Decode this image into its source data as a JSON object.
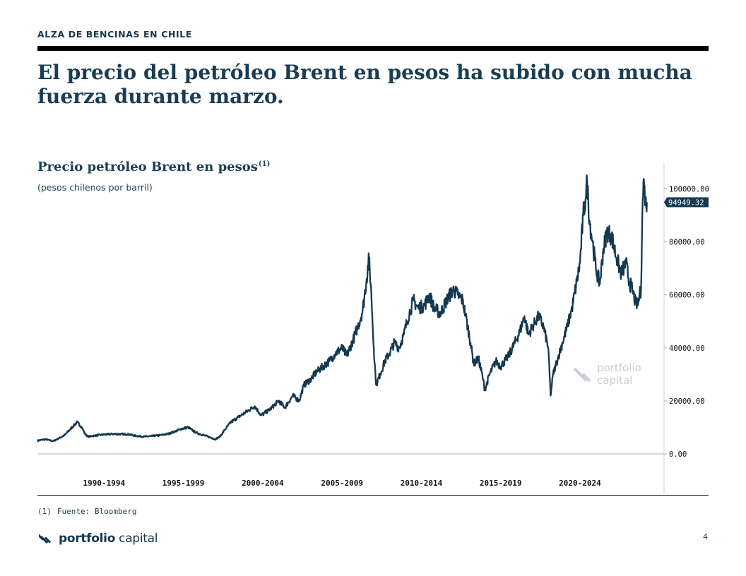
{
  "header": {
    "section_label": "ALZA DE BENCINAS EN CHILE",
    "headline_line1": "El precio del petróleo Brent en pesos ha subido con mucha",
    "headline_line2": "fuerza durante marzo."
  },
  "chart_header": {
    "title": "Precio petróleo Brent en pesos",
    "title_superscript": "(1)",
    "subtitle": "(pesos chilenos por barril)"
  },
  "watermark": {
    "line1": "portfolio",
    "line2": "capital"
  },
  "footer": {
    "footnote_number": "(1)",
    "footnote_text": "Fuente: Bloomberg",
    "logo_bold": "portfolio",
    "logo_regular": " capital",
    "page_number": "4"
  },
  "colors": {
    "line": "#14384f",
    "accent": "#14384f",
    "axis": "#b0b0b0",
    "watermark": "#c9ced4"
  },
  "chart_data": {
    "type": "line",
    "title": "Precio petróleo Brent en pesos",
    "subtitle": "(pesos chilenos por barril)",
    "x_range": [
      1987.8,
      2027.3
    ],
    "ylim": [
      0,
      110000
    ],
    "y_ticks": [
      0,
      20000,
      40000,
      60000,
      80000,
      100000
    ],
    "y_tick_labels": [
      "0.00",
      "20000.00",
      "40000.00",
      "60000.00",
      "80000.00",
      "100000.00"
    ],
    "x_tick_positions": [
      1992,
      1997,
      2002,
      2007,
      2012,
      2017,
      2022
    ],
    "x_tick_labels": [
      "1990-1994",
      "1995-1999",
      "2000-2004",
      "2005-2009",
      "2010-2014",
      "2015-2019",
      "2020-2024"
    ],
    "last_value_label": "94949.32",
    "last_value": 94949.32,
    "grid": false,
    "legend": "none",
    "series": [
      {
        "x": [
          1987.8,
          1988.3,
          1988.8,
          1989.5,
          1990.3,
          1990.6,
          1990.8,
          1991.0,
          1991.3,
          1991.8,
          1992.5,
          1993.5,
          1994.0,
          1994.5,
          1995.0,
          1995.5,
          1996.0,
          1996.5,
          1996.9,
          1997.3,
          1997.8,
          1998.3,
          1998.8,
          1999.0,
          1999.3,
          1999.6,
          2000.0,
          2000.5,
          2001.0,
          2001.5,
          2001.9,
          2002.5,
          2003.0,
          2003.4,
          2003.9,
          2004.3,
          2004.6,
          2005.0,
          2005.4,
          2005.8,
          2006.2,
          2006.6,
          2007.0,
          2007.3,
          2007.7,
          2008.0,
          2008.3,
          2008.55,
          2008.7,
          2008.85,
          2009.0,
          2009.15,
          2009.4,
          2009.7,
          2010.0,
          2010.3,
          2010.6,
          2010.9,
          2011.1,
          2011.3,
          2011.5,
          2011.8,
          2012.2,
          2012.5,
          2012.8,
          2013.2,
          2013.6,
          2014.0,
          2014.3,
          2014.6,
          2014.8,
          2015.1,
          2015.3,
          2015.6,
          2015.9,
          2016.0,
          2016.3,
          2016.7,
          2017.0,
          2017.5,
          2017.9,
          2018.2,
          2018.5,
          2018.75,
          2019.0,
          2019.2,
          2019.4,
          2019.7,
          2020.0,
          2020.15,
          2020.3,
          2020.45,
          2020.6,
          2020.9,
          2021.2,
          2021.5,
          2021.8,
          2022.0,
          2022.2,
          2022.35,
          2022.45,
          2022.6,
          2022.8,
          2023.0,
          2023.25,
          2023.45,
          2023.7,
          2024.0,
          2024.3,
          2024.6,
          2024.9,
          2025.1,
          2025.3,
          2025.5,
          2025.65,
          2025.75,
          2025.85,
          2025.93,
          2026.0,
          2026.05,
          2026.12,
          2026.18,
          2026.22
        ],
        "y": [
          5000,
          5500,
          4800,
          7000,
          12000,
          10000,
          7500,
          6500,
          6800,
          7200,
          7500,
          7400,
          6800,
          6500,
          6700,
          7000,
          7500,
          8500,
          9500,
          10000,
          8000,
          7000,
          6000,
          5500,
          6500,
          9000,
          12000,
          14000,
          16000,
          18000,
          14500,
          17000,
          20000,
          17500,
          22000,
          20000,
          26000,
          28000,
          31000,
          33000,
          35000,
          38000,
          40000,
          37000,
          43000,
          48000,
          54000,
          66000,
          74000,
          60000,
          40000,
          26000,
          30000,
          35000,
          38000,
          42000,
          40000,
          45000,
          50000,
          54000,
          58000,
          55000,
          56000,
          60000,
          55000,
          53000,
          58000,
          62000,
          60000,
          58000,
          52000,
          42000,
          34000,
          36000,
          28000,
          24000,
          30000,
          35000,
          33000,
          37000,
          42000,
          46000,
          52000,
          45000,
          48000,
          50000,
          52000,
          48000,
          40000,
          22000,
          30000,
          33000,
          36000,
          42000,
          48000,
          55000,
          65000,
          72000,
          90000,
          96000,
          103000,
          88000,
          80000,
          70000,
          64000,
          76000,
          84000,
          82000,
          74000,
          68000,
          72000,
          65000,
          62000,
          57000,
          56000,
          60000,
          62000,
          90000,
          103000,
          101000,
          96000,
          93000,
          94949.32
        ]
      }
    ]
  }
}
